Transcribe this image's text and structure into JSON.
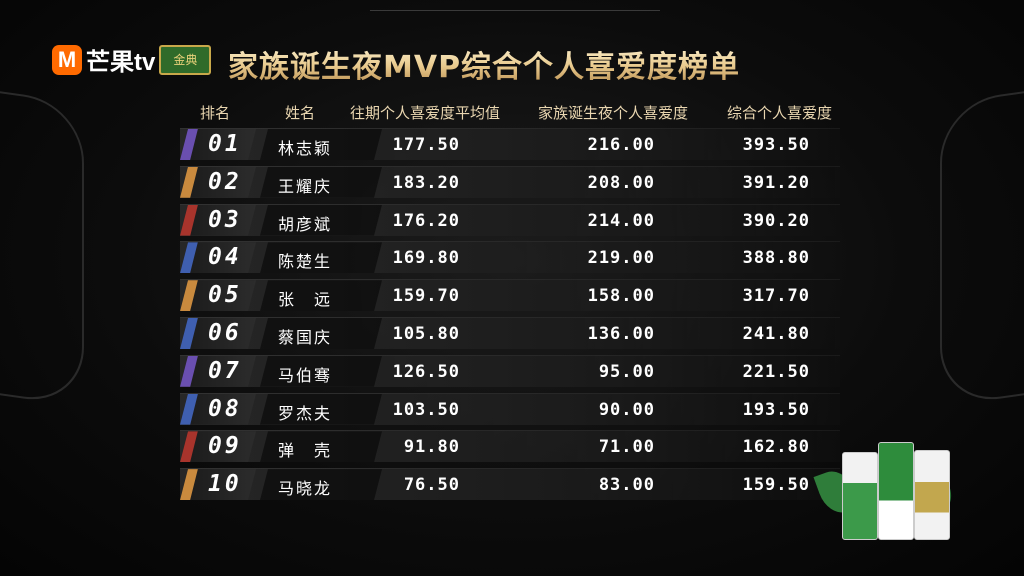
{
  "logo": {
    "brand": "芒果tv",
    "badge": "金典"
  },
  "title": "家族诞生夜MVP综合个人喜爱度榜单",
  "headers": {
    "rank": "排名",
    "name": "姓名",
    "past_avg": "往期个人喜爱度平均值",
    "night": "家族诞生夜个人喜爱度",
    "total": "综合个人喜爱度"
  },
  "rows": [
    {
      "rank": "01",
      "name": "林志颖",
      "past_avg": "177.50",
      "night": "216.00",
      "total": "393.50",
      "color": "#6a4fb0"
    },
    {
      "rank": "02",
      "name": "王耀庆",
      "past_avg": "183.20",
      "night": "208.00",
      "total": "391.20",
      "color": "#c98a3e"
    },
    {
      "rank": "03",
      "name": "胡彦斌",
      "past_avg": "176.20",
      "night": "214.00",
      "total": "390.20",
      "color": "#a8342c"
    },
    {
      "rank": "04",
      "name": "陈楚生",
      "past_avg": "169.80",
      "night": "219.00",
      "total": "388.80",
      "color": "#3f5fb0"
    },
    {
      "rank": "05",
      "name": "张　远",
      "past_avg": "159.70",
      "night": "158.00",
      "total": "317.70",
      "color": "#c98a3e"
    },
    {
      "rank": "06",
      "name": "蔡国庆",
      "past_avg": "105.80",
      "night": "136.00",
      "total": "241.80",
      "color": "#3f5fb0"
    },
    {
      "rank": "07",
      "name": "马伯骞",
      "past_avg": "126.50",
      "night": "95.00",
      "total": "221.50",
      "color": "#6a4fb0"
    },
    {
      "rank": "08",
      "name": "罗杰夫",
      "past_avg": "103.50",
      "night": "90.00",
      "total": "193.50",
      "color": "#3f5fb0"
    },
    {
      "rank": "09",
      "name": "弹　壳",
      "past_avg": "91.80",
      "night": "71.00",
      "total": "162.80",
      "color": "#a8342c"
    },
    {
      "rank": "10",
      "name": "马晓龙",
      "past_avg": "76.50",
      "night": "83.00",
      "total": "159.50",
      "color": "#c98a3e"
    }
  ]
}
